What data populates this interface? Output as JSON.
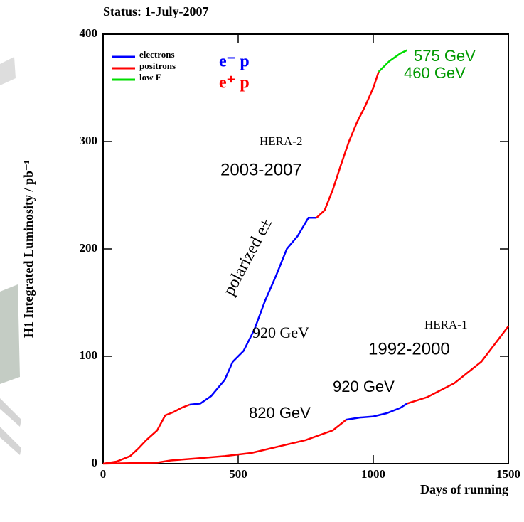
{
  "chart_data": {
    "type": "line",
    "title": "Status:  1-July-2007",
    "x_label": "Days of running",
    "y_label": "H1 Integrated Luminosity / pb⁻¹",
    "xlim": [
      0,
      1500
    ],
    "ylim": [
      0,
      400
    ],
    "xticks": [
      0,
      500,
      1000,
      1500
    ],
    "yticks": [
      0,
      100,
      200,
      300,
      400
    ],
    "legend": "upper left",
    "series": [
      {
        "name": "electrons",
        "color": "#0000ff",
        "x": [
          320,
          360,
          400,
          450,
          480,
          520,
          560,
          600,
          640,
          680,
          720,
          760,
          790,
          null,
          900,
          950,
          1000,
          1050,
          1100,
          1125
        ],
        "values": [
          55,
          56,
          63,
          78,
          95,
          105,
          125,
          152,
          175,
          200,
          212,
          229,
          229,
          null,
          41,
          43,
          44,
          47,
          52,
          56
        ]
      },
      {
        "name": "positrons",
        "color": "#ff0000",
        "x": [
          0,
          50,
          100,
          130,
          160,
          200,
          230,
          260,
          290,
          320,
          null,
          790,
          820,
          850,
          880,
          910,
          940,
          970,
          1000,
          1020,
          null,
          0,
          200,
          250,
          350,
          450,
          550,
          650,
          750,
          850,
          900,
          null,
          1125,
          1200,
          1300,
          1400,
          1500
        ],
        "values": [
          0,
          2,
          7,
          14,
          22,
          31,
          45,
          48,
          52,
          55,
          null,
          229,
          236,
          255,
          278,
          300,
          318,
          333,
          350,
          365,
          null,
          0,
          1,
          3,
          5,
          7,
          10,
          16,
          22,
          31,
          41,
          null,
          56,
          62,
          75,
          95,
          128
        ]
      },
      {
        "name": "low E",
        "color": "#00dd00",
        "x": [
          1020,
          1060,
          1100,
          1125
        ],
        "values": [
          365,
          375,
          382,
          385
        ]
      }
    ],
    "annotations": [
      {
        "text": "e⁻ p",
        "color": "#0000ff"
      },
      {
        "text": "e⁺ p",
        "color": "#ff0000"
      },
      {
        "text": "575 GeV",
        "color": "#009900"
      },
      {
        "text": "460 GeV",
        "color": "#009900"
      },
      {
        "text": "HERA-2",
        "color": "#000000"
      },
      {
        "text": "2003-2007",
        "color": "#000000"
      },
      {
        "text": "polarized e±",
        "color": "#000000"
      },
      {
        "text": "920 GeV",
        "color": "#000000"
      },
      {
        "text": "HERA-1",
        "color": "#000000"
      },
      {
        "text": "1992-2000",
        "color": "#000000"
      },
      {
        "text": "920 GeV",
        "color": "#000000"
      },
      {
        "text": "820 GeV",
        "color": "#000000"
      }
    ]
  }
}
